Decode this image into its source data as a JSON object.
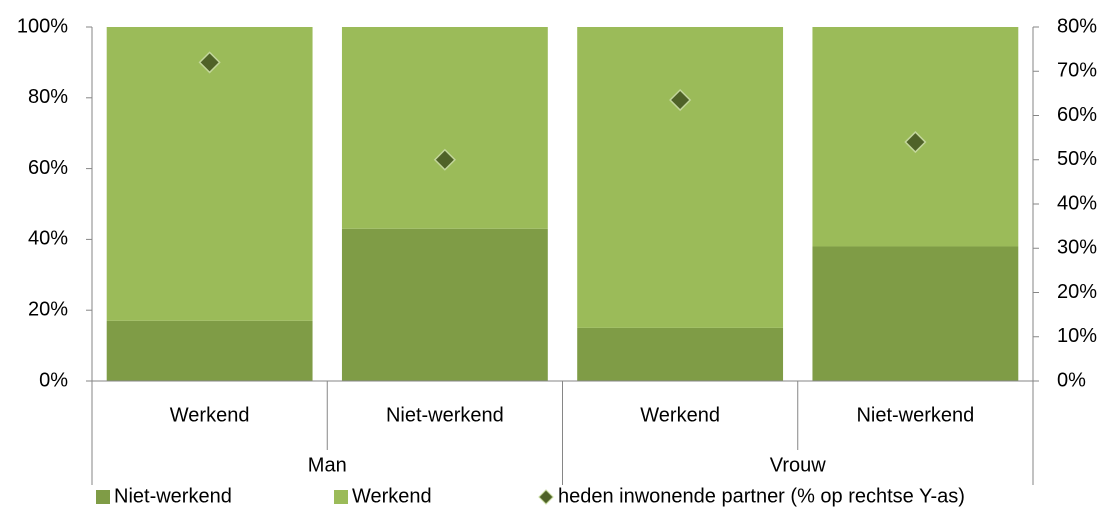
{
  "chart_data": {
    "type": "bar",
    "stacked": true,
    "categories": [
      "Werkend",
      "Niet-werkend",
      "Werkend",
      "Niet-werkend"
    ],
    "groups": [
      "Man",
      "Vrouw"
    ],
    "series": [
      {
        "name": "Niet-werkend",
        "color": "#7f9c46",
        "values": [
          17,
          43,
          15,
          38
        ]
      },
      {
        "name": "Werkend",
        "color": "#9bbb59",
        "values": [
          83,
          57,
          85,
          62
        ]
      },
      {
        "name": "heden inwonende partner (% op rechtse Y-as)",
        "color": "#4f6228",
        "type": "scatter",
        "axis": "y2",
        "values": [
          72,
          50,
          63.5,
          54
        ]
      }
    ],
    "ylim": [
      0,
      100
    ],
    "yticks": [
      {
        "value": 0,
        "label": "0%"
      },
      {
        "value": 20,
        "label": "20%"
      },
      {
        "value": 40,
        "label": "40%"
      },
      {
        "value": 60,
        "label": "60%"
      },
      {
        "value": 80,
        "label": "80%"
      },
      {
        "value": 100,
        "label": "100%"
      }
    ],
    "y2lim": [
      0,
      80
    ],
    "y2ticks": [
      {
        "value": 0,
        "label": "0%"
      },
      {
        "value": 10,
        "label": "10%"
      },
      {
        "value": 20,
        "label": "20%"
      },
      {
        "value": 30,
        "label": "30%"
      },
      {
        "value": 40,
        "label": "40%"
      },
      {
        "value": 50,
        "label": "50%"
      },
      {
        "value": 60,
        "label": "60%"
      },
      {
        "value": 70,
        "label": "70%"
      },
      {
        "value": 80,
        "label": "80%"
      }
    ],
    "legend": "bottom"
  }
}
